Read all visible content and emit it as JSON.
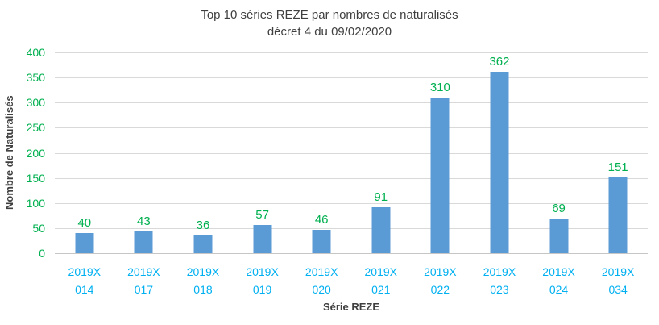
{
  "title": {
    "line1": "Top 10 séries REZE par nombres de naturalisés",
    "line2": "décret 4 du 09/02/2020"
  },
  "chart_data": {
    "type": "bar",
    "title": "Top 10 séries REZE par nombres de naturalisés décret 4 du 09/02/2020",
    "categories": [
      "2019X 014",
      "2019X 017",
      "2019X 018",
      "2019X 019",
      "2019X 020",
      "2019X 021",
      "2019X 022",
      "2019X 023",
      "2019X 024",
      "2019X 034"
    ],
    "values": [
      40,
      43,
      36,
      57,
      46,
      91,
      310,
      362,
      69,
      151
    ],
    "xlabel": "Série REZE",
    "ylabel": "Nombre de Naturalisés",
    "ylim": [
      0,
      400
    ],
    "yticks": [
      0,
      50,
      100,
      150,
      200,
      250,
      300,
      350,
      400
    ],
    "grid": true,
    "legend_position": "none",
    "colors": {
      "bar": "#5b9bd5",
      "data_label": "#00b050",
      "y_tick_label": "#00b050",
      "x_tick_label": "#00b0f0",
      "axis_title": "#3f3f3f",
      "chart_title": "#3f3f3f",
      "gridline": "#d9d9d9"
    }
  }
}
